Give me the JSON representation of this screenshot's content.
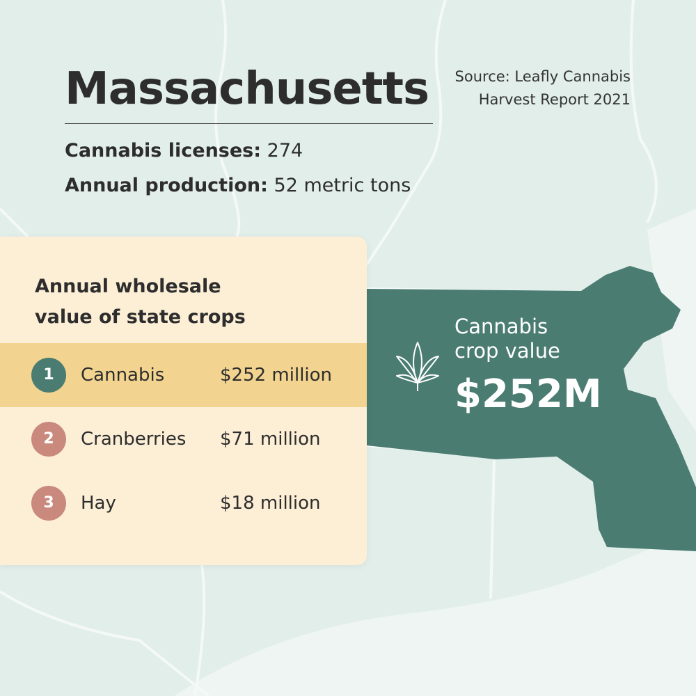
{
  "header": {
    "title": "Massachusetts",
    "source_lines": [
      "Source: Leafly Cannabis",
      "Harvest Report 2021"
    ]
  },
  "stats": [
    {
      "label": "Cannabis licenses:",
      "value": "274"
    },
    {
      "label": "Annual production:",
      "value": "52 metric tons"
    }
  ],
  "card": {
    "title_lines": [
      "Annual wholesale",
      "value of state crops"
    ],
    "rows": [
      {
        "rank": "1",
        "crop": "Cannabis",
        "value": "$252 million"
      },
      {
        "rank": "2",
        "crop": "Cranberries",
        "value": "$71 million"
      },
      {
        "rank": "3",
        "crop": "Hay",
        "value": "$18 million"
      }
    ]
  },
  "callout": {
    "label_lines": [
      "Cannabis",
      "crop value"
    ],
    "value": "$252M"
  }
}
